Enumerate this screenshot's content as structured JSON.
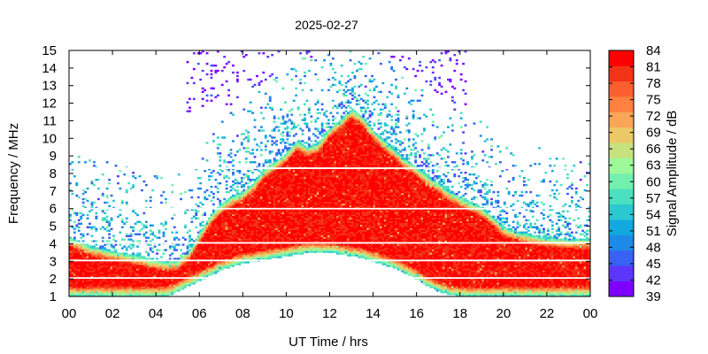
{
  "chart_data": {
    "type": "heatmap",
    "title": "2025-02-27",
    "xlabel": "UT Time / hrs",
    "ylabel": "Frequency / MHz",
    "xlim": [
      0,
      24
    ],
    "ylim": [
      1,
      15
    ],
    "x_ticks": [
      "00",
      "02",
      "04",
      "06",
      "08",
      "10",
      "12",
      "14",
      "16",
      "18",
      "20",
      "22",
      "00"
    ],
    "y_ticks": [
      "1",
      "2",
      "3",
      "4",
      "5",
      "6",
      "7",
      "8",
      "9",
      "10",
      "11",
      "12",
      "13",
      "14",
      "15"
    ],
    "colorbar": {
      "label": "Signal Amplitude / dB",
      "range": [
        39,
        84
      ],
      "ticks": [
        "84",
        "81",
        "78",
        "75",
        "72",
        "69",
        "66",
        "63",
        "60",
        "57",
        "54",
        "51",
        "48",
        "45",
        "42",
        "39"
      ],
      "colors": [
        "#7f00ff",
        "#5c36fb",
        "#3961f3",
        "#1e8ae8",
        "#11a9de",
        "#2bc8d1",
        "#4be0c0",
        "#73f0ae",
        "#9df99a",
        "#c6e27f",
        "#ecc866",
        "#f9a659",
        "#ff8040",
        "#fb5f2f",
        "#f33316",
        "#ff0000"
      ]
    },
    "envelope": {
      "time_h": [
        0,
        1,
        2,
        3,
        4,
        4.6,
        5,
        5.5,
        6,
        6.5,
        7,
        7.5,
        8,
        8.5,
        9,
        9.5,
        10,
        10.5,
        11,
        11.5,
        12,
        12.5,
        13,
        13.5,
        14,
        14.5,
        15,
        15.5,
        16,
        16.5,
        17,
        17.5,
        18,
        18.5,
        19,
        19.5,
        20,
        21,
        22,
        23,
        24
      ],
      "upper_mhz": [
        4.4,
        3.9,
        3.6,
        3.4,
        3.1,
        3.0,
        3.1,
        3.6,
        4.6,
        5.6,
        6.3,
        6.7,
        7.0,
        7.5,
        8.3,
        8.7,
        9.2,
        9.9,
        9.5,
        9.8,
        10.6,
        11.1,
        11.7,
        11.3,
        10.5,
        9.9,
        9.4,
        8.8,
        8.4,
        7.9,
        7.5,
        7.0,
        6.7,
        6.4,
        6.1,
        5.6,
        5.0,
        4.6,
        4.4,
        4.3,
        4.3
      ],
      "lower_mhz": [
        1.0,
        1.0,
        1.0,
        1.0,
        1.0,
        1.05,
        1.3,
        1.6,
        1.9,
        2.2,
        2.5,
        2.7,
        2.9,
        3.0,
        3.1,
        3.2,
        3.3,
        3.4,
        3.5,
        3.5,
        3.5,
        3.4,
        3.3,
        3.2,
        3.0,
        2.8,
        2.6,
        2.3,
        2.0,
        1.6,
        1.3,
        1.1,
        1.0,
        1.0,
        1.0,
        1.0,
        1.0,
        1.0,
        1.0,
        1.0,
        1.0
      ],
      "core_amplitude_db": 82,
      "edge_amplitude_db": 55
    }
  }
}
